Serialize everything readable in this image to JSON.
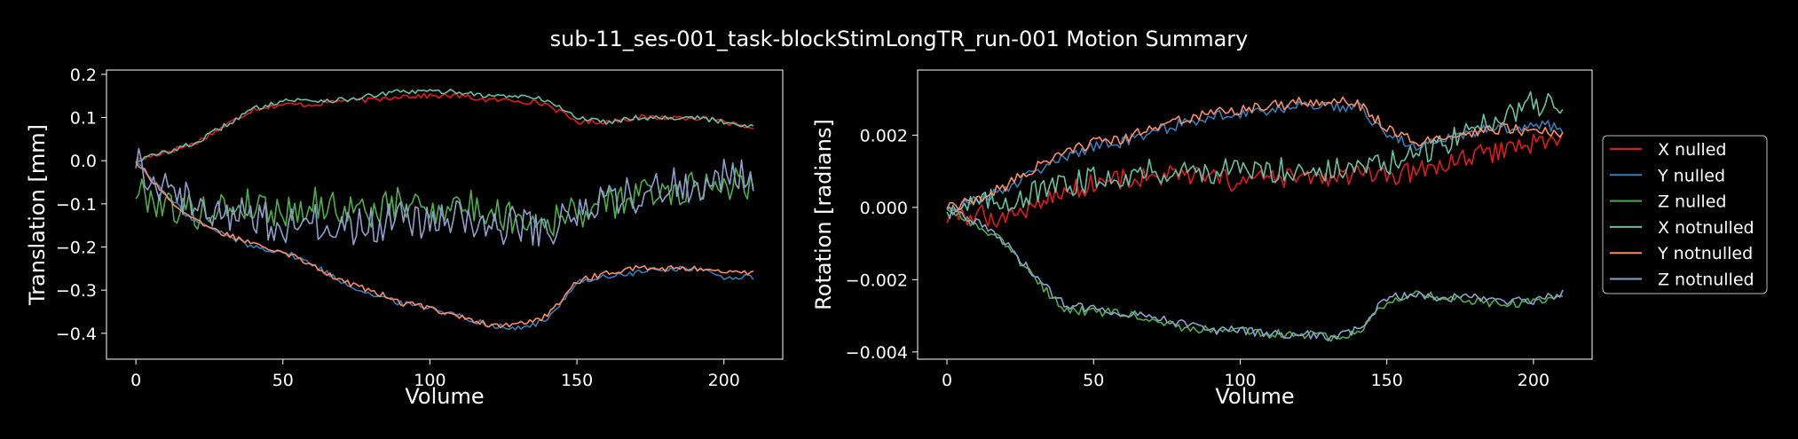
{
  "figure": {
    "title": "sub-11_ses-001_task-blockStimLongTR_run-001 Motion Summary",
    "background": "#000000",
    "foreground": "#ffffff"
  },
  "legend": {
    "placement": "right",
    "entries": [
      "X nulled",
      "Y nulled",
      "Z nulled",
      "X notnulled",
      "Y notnulled",
      "Z notnulled"
    ]
  },
  "chart_data": [
    {
      "type": "line",
      "title": "",
      "xlabel": "Volume",
      "ylabel": "Translation [mm]",
      "xlim": [
        -10,
        220
      ],
      "ylim": [
        -0.46,
        0.21
      ],
      "xticks": [
        0,
        50,
        100,
        150,
        200
      ],
      "xtick_labels": [
        "0",
        "50",
        "100",
        "150",
        "200"
      ],
      "yticks": [
        0.2,
        0.1,
        0.0,
        -0.1,
        -0.2,
        -0.3,
        -0.4
      ],
      "ytick_labels": [
        "0.2",
        "0.1",
        "0.0",
        "−0.1",
        "−0.2",
        "−0.3",
        "−0.4"
      ],
      "grid": false,
      "x": [
        0,
        10,
        20,
        30,
        40,
        50,
        60,
        70,
        80,
        90,
        100,
        110,
        120,
        130,
        140,
        150,
        160,
        170,
        180,
        190,
        200,
        210
      ],
      "series": [
        {
          "name": "X nulled",
          "color": "#e41a1c",
          "values": [
            0.0,
            0.02,
            0.04,
            0.08,
            0.12,
            0.13,
            0.13,
            0.14,
            0.14,
            0.15,
            0.15,
            0.15,
            0.14,
            0.14,
            0.13,
            0.09,
            0.09,
            0.1,
            0.1,
            0.1,
            0.09,
            0.07
          ]
        },
        {
          "name": "Y nulled",
          "color": "#377eb8",
          "values": [
            0.0,
            -0.08,
            -0.14,
            -0.17,
            -0.2,
            -0.21,
            -0.24,
            -0.28,
            -0.31,
            -0.33,
            -0.34,
            -0.36,
            -0.38,
            -0.39,
            -0.37,
            -0.28,
            -0.27,
            -0.26,
            -0.25,
            -0.25,
            -0.27,
            -0.27
          ]
        },
        {
          "name": "Z nulled",
          "color": "#4daf4a",
          "values": [
            -0.07,
            -0.1,
            -0.12,
            -0.11,
            -0.1,
            -0.12,
            -0.1,
            -0.11,
            -0.12,
            -0.1,
            -0.11,
            -0.1,
            -0.12,
            -0.13,
            -0.14,
            -0.12,
            -0.1,
            -0.08,
            -0.07,
            -0.06,
            -0.05,
            -0.05
          ]
        },
        {
          "name": "X notnulled",
          "color": "#66c2a5",
          "values": [
            0.0,
            0.02,
            0.04,
            0.08,
            0.12,
            0.14,
            0.14,
            0.14,
            0.15,
            0.16,
            0.16,
            0.16,
            0.15,
            0.15,
            0.14,
            0.1,
            0.09,
            0.1,
            0.1,
            0.1,
            0.09,
            0.08
          ]
        },
        {
          "name": "Y notnulled",
          "color": "#fc8d62",
          "values": [
            0.0,
            -0.08,
            -0.14,
            -0.17,
            -0.19,
            -0.21,
            -0.24,
            -0.28,
            -0.3,
            -0.33,
            -0.34,
            -0.36,
            -0.38,
            -0.38,
            -0.36,
            -0.28,
            -0.26,
            -0.25,
            -0.25,
            -0.25,
            -0.26,
            -0.26
          ]
        },
        {
          "name": "Z notnulled",
          "color": "#8da0cb",
          "values": [
            0.0,
            -0.06,
            -0.1,
            -0.12,
            -0.13,
            -0.15,
            -0.14,
            -0.16,
            -0.15,
            -0.14,
            -0.14,
            -0.13,
            -0.15,
            -0.15,
            -0.16,
            -0.12,
            -0.09,
            -0.08,
            -0.06,
            -0.05,
            -0.04,
            -0.03
          ]
        }
      ]
    },
    {
      "type": "line",
      "title": "",
      "xlabel": "Volume",
      "ylabel": "Rotation [radians]",
      "xlim": [
        -10,
        220
      ],
      "ylim": [
        -0.0042,
        0.0038
      ],
      "xticks": [
        0,
        50,
        100,
        150,
        200
      ],
      "xtick_labels": [
        "0",
        "50",
        "100",
        "150",
        "200"
      ],
      "yticks": [
        0.002,
        0.0,
        -0.002,
        -0.004
      ],
      "ytick_labels": [
        "0.002",
        "0.000",
        "−0.002",
        "−0.004"
      ],
      "grid": false,
      "x": [
        0,
        10,
        20,
        30,
        40,
        50,
        60,
        70,
        80,
        90,
        100,
        110,
        120,
        130,
        140,
        150,
        160,
        170,
        180,
        190,
        200,
        210
      ],
      "series": [
        {
          "name": "X nulled",
          "color": "#e41a1c",
          "values": [
            -0.0003,
            -0.0002,
            -0.0003,
            0.0001,
            0.0004,
            0.0007,
            0.0008,
            0.0008,
            0.0009,
            0.0008,
            0.0007,
            0.0008,
            0.0008,
            0.0008,
            0.0009,
            0.0008,
            0.001,
            0.0012,
            0.0014,
            0.0016,
            0.0018,
            0.0019
          ]
        },
        {
          "name": "Y nulled",
          "color": "#377eb8",
          "values": [
            0.0,
            0.0002,
            0.0005,
            0.001,
            0.0014,
            0.0017,
            0.0018,
            0.0021,
            0.0023,
            0.0025,
            0.0026,
            0.0027,
            0.0028,
            0.0028,
            0.0028,
            0.002,
            0.0017,
            0.0019,
            0.0021,
            0.0022,
            0.0023,
            0.0022
          ]
        },
        {
          "name": "Z nulled",
          "color": "#4daf4a",
          "values": [
            0.0,
            -0.0005,
            -0.001,
            -0.002,
            -0.0028,
            -0.0029,
            -0.0029,
            -0.0031,
            -0.0033,
            -0.0034,
            -0.0034,
            -0.0035,
            -0.0035,
            -0.0036,
            -0.0035,
            -0.0026,
            -0.0024,
            -0.0025,
            -0.0026,
            -0.0027,
            -0.0026,
            -0.0024
          ]
        },
        {
          "name": "X notnulled",
          "color": "#66c2a5",
          "values": [
            0.0,
            0.0001,
            0.0002,
            0.0004,
            0.0006,
            0.0008,
            0.0009,
            0.001,
            0.001,
            0.001,
            0.001,
            0.001,
            0.0011,
            0.001,
            0.0011,
            0.0012,
            0.0014,
            0.0018,
            0.0022,
            0.0026,
            0.0029,
            0.0027
          ]
        },
        {
          "name": "Y notnulled",
          "color": "#fc8d62",
          "values": [
            0.0,
            0.0002,
            0.0006,
            0.0011,
            0.0015,
            0.0018,
            0.0019,
            0.0022,
            0.0024,
            0.0026,
            0.0027,
            0.0028,
            0.0029,
            0.0029,
            0.0029,
            0.0022,
            0.0018,
            0.0019,
            0.0021,
            0.0022,
            0.0021,
            0.002
          ]
        },
        {
          "name": "Z notnulled",
          "color": "#8da0cb",
          "values": [
            0.0,
            -0.0004,
            -0.001,
            -0.0019,
            -0.0027,
            -0.0028,
            -0.0029,
            -0.003,
            -0.0032,
            -0.0034,
            -0.0034,
            -0.0035,
            -0.0035,
            -0.0036,
            -0.0034,
            -0.0025,
            -0.0024,
            -0.0025,
            -0.0025,
            -0.0026,
            -0.0026,
            -0.0024
          ]
        }
      ]
    }
  ]
}
